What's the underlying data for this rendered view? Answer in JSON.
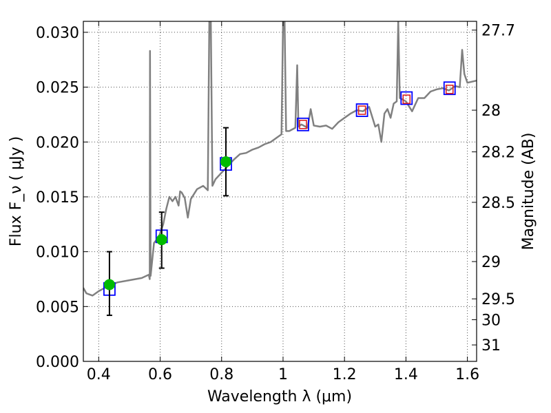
{
  "chart_data": {
    "type": "line",
    "title": "",
    "xlabel": "Wavelength  λ (μm)",
    "ylabel": "Flux  F_ν  ( μJy )",
    "ylabel_right": "Magnitude (AB)",
    "xlim": [
      0.35,
      1.63
    ],
    "ylim": [
      0.0,
      0.031
    ],
    "grid": true,
    "x_ticks": [
      {
        "value": 0.4,
        "label": "0.4"
      },
      {
        "value": 0.6,
        "label": "0.6"
      },
      {
        "value": 0.8,
        "label": "0.8"
      },
      {
        "value": 1.0,
        "label": "1"
      },
      {
        "value": 1.2,
        "label": "1.2"
      },
      {
        "value": 1.4,
        "label": "1.4"
      },
      {
        "value": 1.6,
        "label": "1.6"
      }
    ],
    "y_ticks": [
      {
        "value": 0.0,
        "label": "0.000"
      },
      {
        "value": 0.005,
        "label": "0.005"
      },
      {
        "value": 0.01,
        "label": "0.010"
      },
      {
        "value": 0.015,
        "label": "0.015"
      },
      {
        "value": 0.02,
        "label": "0.020"
      },
      {
        "value": 0.025,
        "label": "0.025"
      },
      {
        "value": 0.03,
        "label": "0.030"
      }
    ],
    "right_ticks": [
      {
        "flux": 0.0302,
        "label": "27.7"
      },
      {
        "flux": 0.0229,
        "label": "28"
      },
      {
        "flux": 0.0191,
        "label": "28.2"
      },
      {
        "flux": 0.0145,
        "label": "28.5"
      },
      {
        "flux": 0.0091,
        "label": "29"
      },
      {
        "flux": 0.0057,
        "label": "29.5"
      },
      {
        "flux": 0.0038,
        "label": "30"
      },
      {
        "flux": 0.0015,
        "label": "31"
      }
    ],
    "series": [
      {
        "kind": "spectrum",
        "color": "#808080",
        "points": [
          [
            0.35,
            0.0067
          ],
          [
            0.36,
            0.0062
          ],
          [
            0.38,
            0.006
          ],
          [
            0.4,
            0.0064
          ],
          [
            0.42,
            0.0067
          ],
          [
            0.44,
            0.0069
          ],
          [
            0.46,
            0.0072
          ],
          [
            0.5,
            0.0074
          ],
          [
            0.54,
            0.0076
          ],
          [
            0.563,
            0.0079
          ],
          [
            0.566,
            0.0075
          ],
          [
            0.567,
            0.0283
          ],
          [
            0.569,
            0.0078
          ],
          [
            0.58,
            0.0108
          ],
          [
            0.595,
            0.0113
          ],
          [
            0.61,
            0.0125
          ],
          [
            0.62,
            0.0139
          ],
          [
            0.63,
            0.015
          ],
          [
            0.64,
            0.0146
          ],
          [
            0.65,
            0.015
          ],
          [
            0.66,
            0.0142
          ],
          [
            0.665,
            0.0155
          ],
          [
            0.67,
            0.0154
          ],
          [
            0.68,
            0.0149
          ],
          [
            0.69,
            0.0131
          ],
          [
            0.7,
            0.0148
          ],
          [
            0.72,
            0.0157
          ],
          [
            0.74,
            0.016
          ],
          [
            0.755,
            0.0156
          ],
          [
            0.76,
            0.031
          ],
          [
            0.765,
            0.031
          ],
          [
            0.77,
            0.016
          ],
          [
            0.78,
            0.0166
          ],
          [
            0.8,
            0.0172
          ],
          [
            0.82,
            0.0178
          ],
          [
            0.84,
            0.0184
          ],
          [
            0.86,
            0.0189
          ],
          [
            0.88,
            0.019
          ],
          [
            0.9,
            0.0193
          ],
          [
            0.92,
            0.0195
          ],
          [
            0.94,
            0.0198
          ],
          [
            0.96,
            0.02
          ],
          [
            0.98,
            0.0204
          ],
          [
            0.995,
            0.0207
          ],
          [
            1.0,
            0.031
          ],
          [
            1.005,
            0.031
          ],
          [
            1.01,
            0.021
          ],
          [
            1.02,
            0.021
          ],
          [
            1.04,
            0.0213
          ],
          [
            1.046,
            0.027
          ],
          [
            1.05,
            0.0214
          ],
          [
            1.06,
            0.0216
          ],
          [
            1.08,
            0.0213
          ],
          [
            1.09,
            0.023
          ],
          [
            1.1,
            0.0215
          ],
          [
            1.12,
            0.0214
          ],
          [
            1.14,
            0.0215
          ],
          [
            1.16,
            0.0212
          ],
          [
            1.18,
            0.0218
          ],
          [
            1.2,
            0.0222
          ],
          [
            1.22,
            0.0226
          ],
          [
            1.24,
            0.0229
          ],
          [
            1.26,
            0.0228
          ],
          [
            1.28,
            0.0232
          ],
          [
            1.3,
            0.0214
          ],
          [
            1.31,
            0.0216
          ],
          [
            1.32,
            0.02
          ],
          [
            1.33,
            0.0226
          ],
          [
            1.34,
            0.023
          ],
          [
            1.35,
            0.0222
          ],
          [
            1.36,
            0.0235
          ],
          [
            1.37,
            0.0237
          ],
          [
            1.375,
            0.031
          ],
          [
            1.38,
            0.024
          ],
          [
            1.4,
            0.0237
          ],
          [
            1.42,
            0.0228
          ],
          [
            1.44,
            0.024
          ],
          [
            1.46,
            0.024
          ],
          [
            1.48,
            0.0246
          ],
          [
            1.5,
            0.0248
          ],
          [
            1.52,
            0.0249
          ],
          [
            1.54,
            0.0247
          ],
          [
            1.56,
            0.0251
          ],
          [
            1.575,
            0.025
          ],
          [
            1.583,
            0.0284
          ],
          [
            1.59,
            0.0262
          ],
          [
            1.6,
            0.0254
          ],
          [
            1.63,
            0.0256
          ]
        ]
      }
    ],
    "model_photometry": {
      "marker": "square",
      "color": "#0000ff",
      "points": [
        [
          0.435,
          0.0066
        ],
        [
          0.605,
          0.0114
        ],
        [
          0.814,
          0.018
        ],
        [
          1.065,
          0.0216
        ],
        [
          1.257,
          0.0229
        ],
        [
          1.402,
          0.024
        ],
        [
          1.542,
          0.0249
        ]
      ]
    },
    "observed_photometry": {
      "marker": "circle",
      "color": "#00bb00",
      "errorbar_color": "#000000",
      "points": [
        {
          "x": 0.435,
          "y": 0.007,
          "yerr_low": 0.0028,
          "yerr_high": 0.003
        },
        {
          "x": 0.605,
          "y": 0.0111,
          "yerr_low": 0.0026,
          "yerr_high": 0.0025
        },
        {
          "x": 0.814,
          "y": 0.0182,
          "yerr_low": 0.0031,
          "yerr_high": 0.0031
        }
      ]
    },
    "nir_overlay": {
      "marker": "square",
      "color": "#dd2222",
      "points": [
        [
          1.065,
          0.0216
        ],
        [
          1.257,
          0.0229
        ],
        [
          1.402,
          0.0239
        ],
        [
          1.542,
          0.0248
        ]
      ]
    }
  }
}
